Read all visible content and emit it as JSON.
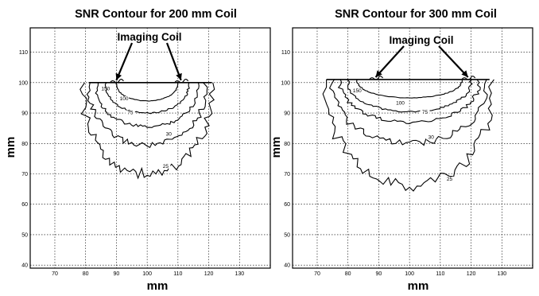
{
  "chart_data": [
    {
      "type": "contour",
      "title": "SNR Contour for 200 mm Coil",
      "xlabel": "mm",
      "ylabel": "mm",
      "xlim": [
        62,
        140
      ],
      "ylim": [
        39,
        118
      ],
      "xticks": [
        70,
        80,
        90,
        100,
        110,
        120,
        130
      ],
      "yticks": [
        40,
        50,
        60,
        70,
        80,
        90,
        100,
        110
      ],
      "grid": true,
      "annotation": "Imaging Coil",
      "arrow_targets": [
        [
          90,
          100
        ],
        [
          111,
          100
        ]
      ],
      "coil_x": [
        81,
        121
      ],
      "coil_y": 100,
      "contour_levels": [
        "150",
        "100",
        "75",
        "30",
        "25"
      ],
      "contours": [
        {
          "level": "150",
          "half_width": 10,
          "depth": 6,
          "label_x": 86.5,
          "label_y": 97.5
        },
        {
          "level": "100",
          "half_width": 13.5,
          "depth": 10,
          "label_x": 92.5,
          "label_y": 94.2
        },
        {
          "level": "75",
          "half_width": 16.5,
          "depth": 14.5,
          "label_x": 94.5,
          "label_y": 89.6
        },
        {
          "level": "30",
          "half_width": 19,
          "depth": 20.5,
          "label_x": 107,
          "label_y": 82.5
        },
        {
          "level": "25",
          "half_width": 21,
          "depth": 30,
          "label_x": 106,
          "label_y": 72
        }
      ]
    },
    {
      "type": "contour",
      "title": "SNR Contour for 300 mm Coil",
      "xlabel": "mm",
      "ylabel": "mm",
      "xlim": [
        62,
        140
      ],
      "ylim": [
        39,
        118
      ],
      "xticks": [
        70,
        80,
        90,
        100,
        110,
        120,
        130
      ],
      "yticks": [
        40,
        50,
        60,
        70,
        80,
        90,
        100,
        110
      ],
      "grid": true,
      "annotation": "Imaging Coil",
      "arrow_targets": [
        [
          89,
          101
        ],
        [
          119,
          101
        ]
      ],
      "coil_x": [
        73,
        126
      ],
      "coil_y": 101,
      "contour_levels": [
        "150",
        "100",
        "75",
        "30",
        "25"
      ],
      "contours": [
        {
          "level": "150",
          "half_width": 17,
          "depth": 6,
          "label_x": 83,
          "label_y": 96.8
        },
        {
          "level": "100",
          "half_width": 20,
          "depth": 10.5,
          "label_x": 97,
          "label_y": 92.8
        },
        {
          "level": "75",
          "half_width": 22.5,
          "depth": 14,
          "label_x": 105,
          "label_y": 89.8
        },
        {
          "level": "30",
          "half_width": 25,
          "depth": 21,
          "label_x": 107,
          "label_y": 81.5
        },
        {
          "level": "25",
          "half_width": 27,
          "depth": 35,
          "label_x": 113,
          "label_y": 67.8
        }
      ]
    }
  ]
}
